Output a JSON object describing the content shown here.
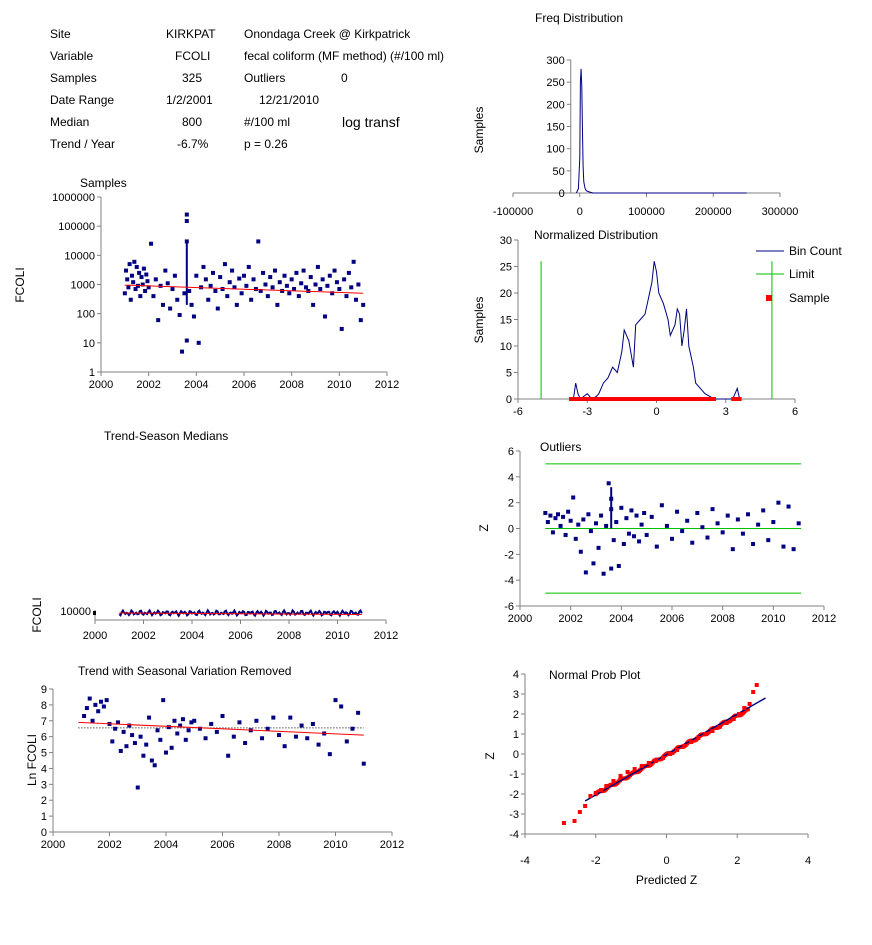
{
  "summary": {
    "site": {
      "label": "Site",
      "code": "KIRKPAT",
      "desc": "Onondaga Creek @ Kirkpatrick"
    },
    "variable": {
      "label": "Variable",
      "code": "FCOLI",
      "desc": "fecal coliform (MF method) (#/100 ml)"
    },
    "samples": {
      "label": "Samples",
      "value": "325",
      "outliers_label": "Outliers",
      "outliers_value": "0"
    },
    "date_range": {
      "label": "Date Range",
      "start": "1/2/2001",
      "end": "12/21/2010"
    },
    "median": {
      "label": "Median",
      "value": "800",
      "unit": "#/100 ml",
      "note": "log transf"
    },
    "trend": {
      "label": "Trend / Year",
      "value": "-6.7%",
      "p": "p = 0.26"
    }
  },
  "colors": {
    "series": "#000080",
    "trend": "#ff0000",
    "limit": "#00c000",
    "sample": "#ff0000",
    "axis": "#808080"
  },
  "chart_data": [
    {
      "id": "samples",
      "type": "scatter",
      "title": "Samples",
      "ylabel": "FCOLI",
      "xlim": [
        2000,
        2012
      ],
      "ylim": [
        1,
        1000000
      ],
      "yscale": "log",
      "xticks": [
        2000,
        2002,
        2004,
        2006,
        2008,
        2010,
        2012
      ],
      "yticks": [
        1,
        10,
        100,
        1000,
        10000,
        100000,
        1000000
      ],
      "ytick_labels": [
        "1",
        "10",
        "100",
        "1000",
        "10000",
        "100000",
        "1000000"
      ],
      "x": [
        2001.0,
        2001.05,
        2001.1,
        2001.15,
        2001.2,
        2001.25,
        2001.3,
        2001.35,
        2001.4,
        2001.45,
        2001.5,
        2001.55,
        2001.6,
        2001.65,
        2001.7,
        2001.75,
        2001.8,
        2001.85,
        2001.9,
        2001.95,
        2002.0,
        2002.1,
        2002.2,
        2002.3,
        2002.4,
        2002.5,
        2002.6,
        2002.7,
        2002.8,
        2002.9,
        2003.0,
        2003.1,
        2003.2,
        2003.3,
        2003.4,
        2003.5,
        2003.6,
        2003.6,
        2003.6,
        2003.6,
        2003.7,
        2003.8,
        2003.9,
        2004.0,
        2004.1,
        2004.2,
        2004.3,
        2004.4,
        2004.5,
        2004.6,
        2004.7,
        2004.8,
        2004.9,
        2005.0,
        2005.1,
        2005.2,
        2005.3,
        2005.4,
        2005.5,
        2005.6,
        2005.7,
        2005.8,
        2005.9,
        2006.0,
        2006.1,
        2006.2,
        2006.3,
        2006.4,
        2006.5,
        2006.6,
        2006.7,
        2006.8,
        2006.9,
        2007.0,
        2007.1,
        2007.2,
        2007.3,
        2007.4,
        2007.5,
        2007.6,
        2007.7,
        2007.8,
        2007.9,
        2008.0,
        2008.1,
        2008.2,
        2008.3,
        2008.4,
        2008.5,
        2008.6,
        2008.7,
        2008.8,
        2008.9,
        2009.0,
        2009.1,
        2009.2,
        2009.3,
        2009.4,
        2009.5,
        2009.6,
        2009.7,
        2009.8,
        2009.9,
        2010.0,
        2010.1,
        2010.2,
        2010.3,
        2010.4,
        2010.5,
        2010.6,
        2010.7,
        2010.8,
        2010.9,
        2011.0
      ],
      "y": [
        500,
        3000,
        1500,
        800,
        5000,
        300,
        2000,
        1200,
        6000,
        700,
        4000,
        900,
        2500,
        400,
        1800,
        1000,
        3500,
        600,
        2200,
        1300,
        800,
        25000,
        400,
        1500,
        60,
        900,
        200,
        3000,
        1100,
        150,
        700,
        2000,
        300,
        90,
        5,
        500,
        250000,
        30000,
        150000,
        12,
        600,
        200,
        80,
        2000,
        10,
        800,
        4000,
        1500,
        300,
        900,
        2500,
        600,
        150,
        1800,
        700,
        5000,
        400,
        1200,
        3000,
        800,
        200,
        1600,
        500,
        2000,
        900,
        4000,
        300,
        1500,
        700,
        30000,
        600,
        2500,
        1000,
        400,
        1800,
        800,
        3000,
        200,
        1200,
        600,
        2000,
        900,
        500,
        1500,
        700,
        2500,
        400,
        1100,
        3000,
        800,
        600,
        1800,
        200,
        1000,
        4000,
        700,
        1500,
        80,
        900,
        2000,
        500,
        3000,
        1200,
        700,
        30,
        1500,
        400,
        2500,
        800,
        6000,
        300,
        1000,
        60,
        200
      ],
      "trend": {
        "x": [
          2001,
          2011
        ],
        "y": [
          950,
          500
        ]
      }
    },
    {
      "id": "trend_season_medians",
      "type": "line",
      "title": "Trend-Season Medians",
      "ylabel": "FCOLI",
      "xlim": [
        2000,
        2012
      ],
      "xticks": [
        2000,
        2002,
        2004,
        2006,
        2008,
        2010,
        2012
      ],
      "ytick_labels": [
        "10000"
      ],
      "note": "y axis compressed to ~1000-10000 band"
    },
    {
      "id": "trend_seasonal_removed",
      "type": "scatter",
      "title": "Trend with Seasonal Variation Removed",
      "ylabel": "Ln FCOLI",
      "xlim": [
        2000,
        2012
      ],
      "ylim": [
        0,
        9
      ],
      "xticks": [
        2000,
        2002,
        2004,
        2006,
        2008,
        2010,
        2012
      ],
      "yticks": [
        0,
        1,
        2,
        3,
        4,
        5,
        6,
        7,
        8,
        9
      ],
      "x": [
        2001.1,
        2001.2,
        2001.3,
        2001.4,
        2001.5,
        2001.6,
        2001.7,
        2001.8,
        2001.9,
        2002.0,
        2002.1,
        2002.2,
        2002.3,
        2002.4,
        2002.5,
        2002.6,
        2002.7,
        2002.8,
        2002.9,
        2003.0,
        2003.1,
        2003.2,
        2003.3,
        2003.4,
        2003.5,
        2003.6,
        2003.7,
        2003.8,
        2003.9,
        2004.0,
        2004.1,
        2004.2,
        2004.3,
        2004.4,
        2004.5,
        2004.6,
        2004.7,
        2004.8,
        2004.9,
        2005.0,
        2005.2,
        2005.4,
        2005.6,
        2005.8,
        2006.0,
        2006.2,
        2006.4,
        2006.6,
        2006.8,
        2007.0,
        2007.2,
        2007.4,
        2007.6,
        2007.8,
        2008.0,
        2008.2,
        2008.4,
        2008.6,
        2008.8,
        2009.0,
        2009.2,
        2009.4,
        2009.6,
        2009.8,
        2010.0,
        2010.2,
        2010.4,
        2010.6,
        2010.8,
        2011.0
      ],
      "y": [
        7.3,
        7.8,
        8.4,
        7.0,
        8.0,
        7.6,
        8.2,
        7.9,
        8.3,
        6.8,
        5.7,
        6.5,
        6.9,
        5.1,
        6.3,
        5.4,
        6.7,
        6.1,
        5.6,
        2.8,
        6.0,
        4.8,
        5.5,
        7.2,
        4.5,
        4.2,
        6.4,
        5.8,
        8.3,
        5.0,
        6.6,
        5.3,
        7.0,
        6.2,
        6.7,
        7.1,
        5.8,
        6.4,
        6.9,
        7.0,
        6.5,
        5.9,
        6.8,
        6.3,
        7.3,
        4.8,
        6.0,
        6.9,
        5.6,
        6.4,
        7.0,
        5.9,
        6.5,
        7.2,
        6.1,
        5.4,
        7.2,
        6.0,
        6.7,
        5.9,
        6.8,
        5.5,
        6.2,
        4.9,
        8.3,
        7.9,
        5.7,
        6.5,
        7.5,
        4.3
      ],
      "trend": {
        "x": [
          2000.9,
          2011
        ],
        "y": [
          6.9,
          6.1
        ]
      },
      "median_line": {
        "x": [
          2000.9,
          2011
        ],
        "y": [
          6.55,
          6.55
        ]
      }
    },
    {
      "id": "freq_distribution",
      "type": "line",
      "title": "Freq Distribution",
      "ylabel": "Samples",
      "xlim": [
        -100000,
        300000
      ],
      "ylim": [
        0,
        300
      ],
      "xticks": [
        -100000,
        0,
        100000,
        200000,
        300000
      ],
      "yticks": [
        0,
        50,
        100,
        150,
        200,
        250,
        300
      ],
      "x": [
        -5000,
        -2000,
        0,
        1000,
        2000,
        3000,
        4000,
        5000,
        6000,
        8000,
        10000,
        15000,
        20000,
        250000
      ],
      "y": [
        0,
        10,
        80,
        250,
        280,
        240,
        150,
        60,
        25,
        10,
        5,
        2,
        0,
        0
      ]
    },
    {
      "id": "normalized_distribution",
      "type": "line",
      "title": "Normalized Distribution",
      "ylabel": "Samples",
      "xlim": [
        -6,
        6
      ],
      "ylim": [
        0,
        30
      ],
      "xticks": [
        -6,
        -3,
        0,
        3,
        6
      ],
      "yticks": [
        0,
        5,
        10,
        15,
        20,
        25,
        30
      ],
      "series": [
        {
          "name": "Bin Count",
          "x": [
            -3.6,
            -3.5,
            -3.4,
            -3.3,
            -3.0,
            -2.8,
            -2.6,
            -2.5,
            -2.3,
            -2.1,
            -2.0,
            -1.9,
            -1.7,
            -1.5,
            -1.4,
            -1.2,
            -1.0,
            -0.9,
            -0.7,
            -0.5,
            -0.4,
            -0.2,
            -0.1,
            0.0,
            0.1,
            0.3,
            0.5,
            0.6,
            0.8,
            0.9,
            1.0,
            1.1,
            1.2,
            1.3,
            1.4,
            1.5,
            1.6,
            1.7,
            1.9,
            2.1,
            2.3,
            2.5,
            3.3,
            3.5,
            3.6
          ],
          "y": [
            0,
            3,
            1,
            0,
            1,
            0,
            0.5,
            1,
            3,
            4,
            5,
            6,
            5,
            9,
            13,
            11,
            6,
            14,
            15,
            16,
            18,
            22,
            26,
            24,
            20,
            18,
            15,
            12,
            14,
            17,
            16,
            10,
            13,
            17,
            10,
            8,
            6,
            3,
            2,
            1,
            0.5,
            0,
            0,
            2,
            0
          ]
        },
        {
          "name": "Limit",
          "x": [
            -5,
            -5,
            5,
            5
          ],
          "y": [
            0,
            26,
            26,
            0
          ]
        },
        {
          "name": "Sample",
          "note": "samples along z axis from -3.7 to 3.6"
        }
      ],
      "legend": "right"
    },
    {
      "id": "outliers",
      "type": "scatter",
      "title": "Outliers",
      "ylabel": "Z",
      "xlim": [
        2000,
        2012
      ],
      "ylim": [
        -6,
        6
      ],
      "xticks": [
        2000,
        2002,
        2004,
        2006,
        2008,
        2010,
        2012
      ],
      "yticks": [
        -6,
        -4,
        -2,
        0,
        2,
        4,
        6
      ],
      "limits": [
        5,
        -5
      ],
      "x": [
        2001.0,
        2001.1,
        2001.2,
        2001.3,
        2001.4,
        2001.5,
        2001.6,
        2001.7,
        2001.8,
        2001.9,
        2002.0,
        2002.1,
        2002.2,
        2002.3,
        2002.4,
        2002.5,
        2002.6,
        2002.7,
        2002.8,
        2002.9,
        2003.0,
        2003.1,
        2003.2,
        2003.3,
        2003.4,
        2003.5,
        2003.6,
        2003.6,
        2003.6,
        2003.7,
        2003.8,
        2003.9,
        2004.0,
        2004.1,
        2004.2,
        2004.3,
        2004.4,
        2004.5,
        2004.6,
        2004.7,
        2004.8,
        2004.9,
        2005.0,
        2005.2,
        2005.4,
        2005.6,
        2005.8,
        2006.0,
        2006.2,
        2006.4,
        2006.6,
        2006.8,
        2007.0,
        2007.2,
        2007.4,
        2007.6,
        2007.8,
        2008.0,
        2008.2,
        2008.4,
        2008.6,
        2008.8,
        2009.0,
        2009.2,
        2009.4,
        2009.6,
        2009.8,
        2010.0,
        2010.2,
        2010.4,
        2010.6,
        2010.8,
        2011.0
      ],
      "y": [
        1.2,
        0.5,
        1.0,
        -0.3,
        0.8,
        1.1,
        0.2,
        0.9,
        -0.5,
        1.3,
        0.6,
        2.4,
        -0.8,
        0.3,
        -1.8,
        0.7,
        -3.4,
        1.1,
        -0.2,
        -2.7,
        0.4,
        -1.5,
        1.0,
        -3.5,
        0.2,
        3.5,
        -3.1,
        2.3,
        1.5,
        -0.9,
        0.5,
        -2.9,
        1.6,
        -1.2,
        0.8,
        -0.4,
        1.4,
        -0.6,
        1.0,
        -1.0,
        0.3,
        1.2,
        -0.5,
        0.9,
        -1.4,
        1.8,
        0.2,
        -0.8,
        1.3,
        -0.2,
        0.6,
        -1.1,
        1.2,
        0.1,
        -0.7,
        1.5,
        0.4,
        -0.3,
        1.0,
        -1.6,
        0.7,
        -0.4,
        1.1,
        -1.2,
        0.3,
        1.4,
        -0.9,
        0.5,
        2.0,
        -1.4,
        1.7,
        -1.6,
        0.4
      ],
      "median_line": 0
    },
    {
      "id": "normal_prob_plot",
      "type": "scatter",
      "title": "Normal Prob Plot",
      "xlabel": "Predicted Z",
      "ylabel": "Z",
      "xlim": [
        -4,
        4
      ],
      "ylim": [
        -4,
        4
      ],
      "xticks": [
        -4,
        -2,
        0,
        2,
        4
      ],
      "yticks": [
        -4,
        -3,
        -2,
        -1,
        0,
        1,
        2,
        3,
        4
      ],
      "x": [
        -2.9,
        -2.6,
        -2.45,
        -2.3,
        -2.15,
        -2.0,
        -1.85,
        -1.7,
        -1.5,
        -1.3,
        -1.1,
        -0.9,
        -0.7,
        -0.5,
        -0.3,
        -0.1,
        0.1,
        0.3,
        0.5,
        0.7,
        0.9,
        1.1,
        1.3,
        1.5,
        1.7,
        1.9,
        2.05,
        2.2,
        2.35,
        2.45,
        2.55
      ],
      "y": [
        -3.45,
        -3.35,
        -2.9,
        -2.6,
        -2.1,
        -1.95,
        -1.8,
        -1.6,
        -1.35,
        -1.1,
        -0.9,
        -0.75,
        -0.6,
        -0.45,
        -0.35,
        -0.2,
        0.0,
        0.2,
        0.4,
        0.6,
        0.8,
        1.0,
        1.15,
        1.35,
        1.55,
        1.75,
        2.0,
        2.3,
        2.5,
        3.1,
        3.45
      ],
      "fit_line": {
        "x": [
          -2.3,
          2.8
        ],
        "y": [
          -2.35,
          2.8
        ]
      }
    }
  ]
}
